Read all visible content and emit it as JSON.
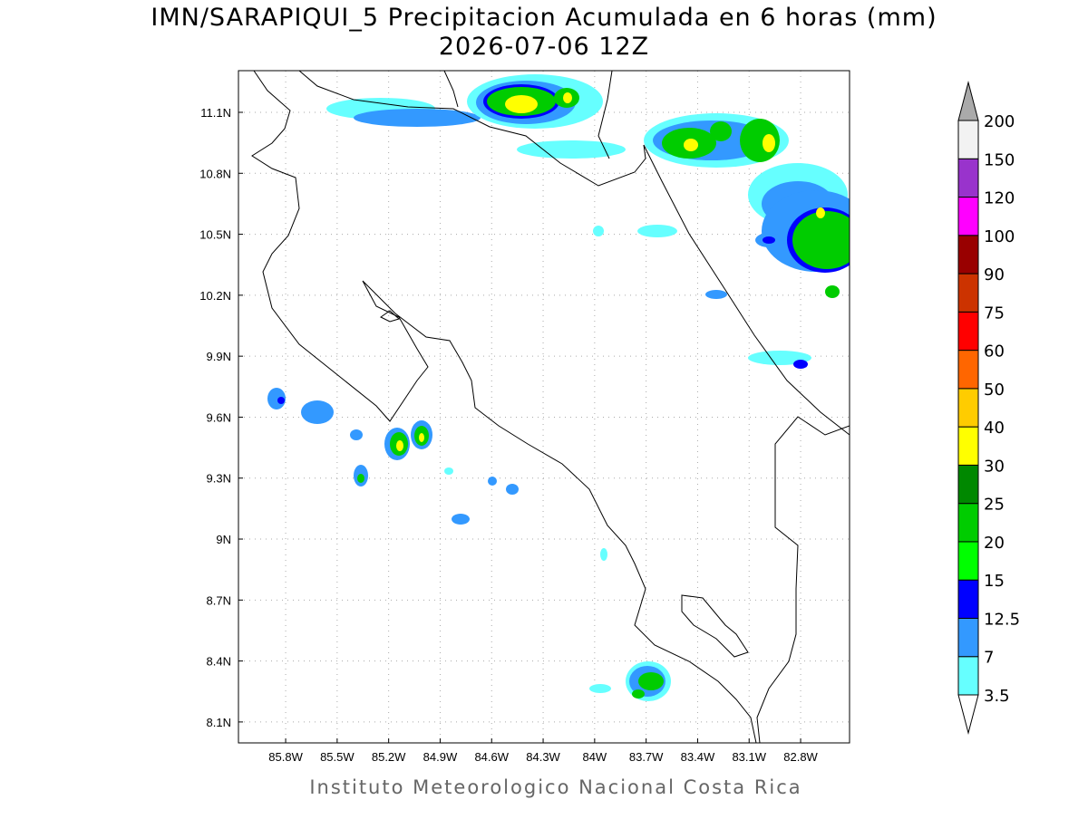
{
  "map": {
    "title": "IMN/SARAPIQUI_5 Precipitacion Acumulada en 6 horas (mm)",
    "subtitle": "2026-07-06 12Z",
    "footer": "Instituto Meteorologico Nacional Costa Rica",
    "lon_range": [
      -86.075,
      -82.515
    ],
    "lat_range": [
      7.997,
      11.305
    ],
    "grid": true,
    "lon_ticks": [
      {
        "value": -85.8,
        "label": "85.8W"
      },
      {
        "value": -85.5,
        "label": "85.5W"
      },
      {
        "value": -85.2,
        "label": "85.2W"
      },
      {
        "value": -84.9,
        "label": "84.9W"
      },
      {
        "value": -84.6,
        "label": "84.6W"
      },
      {
        "value": -84.3,
        "label": "84.3W"
      },
      {
        "value": -84.0,
        "label": "84W"
      },
      {
        "value": -83.7,
        "label": "83.7W"
      },
      {
        "value": -83.4,
        "label": "83.4W"
      },
      {
        "value": -83.1,
        "label": "83.1W"
      },
      {
        "value": -82.8,
        "label": "82.8W"
      }
    ],
    "lat_ticks": [
      {
        "value": 11.1,
        "label": "11.1N"
      },
      {
        "value": 10.8,
        "label": "10.8N"
      },
      {
        "value": 10.5,
        "label": "10.5N"
      },
      {
        "value": 10.2,
        "label": "10.2N"
      },
      {
        "value": 9.9,
        "label": "9.9N"
      },
      {
        "value": 9.6,
        "label": "9.6N"
      },
      {
        "value": 9.3,
        "label": "9.3N"
      },
      {
        "value": 9.0,
        "label": "9N"
      },
      {
        "value": 8.7,
        "label": "8.7N"
      },
      {
        "value": 8.4,
        "label": "8.4N"
      },
      {
        "value": 8.1,
        "label": "8.1N"
      }
    ],
    "colorbar": {
      "levels": [
        3.5,
        7,
        12.5,
        15,
        20,
        25,
        30,
        40,
        50,
        60,
        75,
        90,
        100,
        120,
        150,
        200
      ],
      "colors": [
        "#66ffff",
        "#3399ff",
        "#0000ff",
        "#00ff00",
        "#00cc00",
        "#008800",
        "#ffff00",
        "#ffcc00",
        "#ff6600",
        "#ff0000",
        "#cc3300",
        "#990000",
        "#ff00ff",
        "#9933cc",
        "#f2f2f2"
      ],
      "under_color": "#ffffff",
      "over_color": "#aaaaaa"
    }
  }
}
